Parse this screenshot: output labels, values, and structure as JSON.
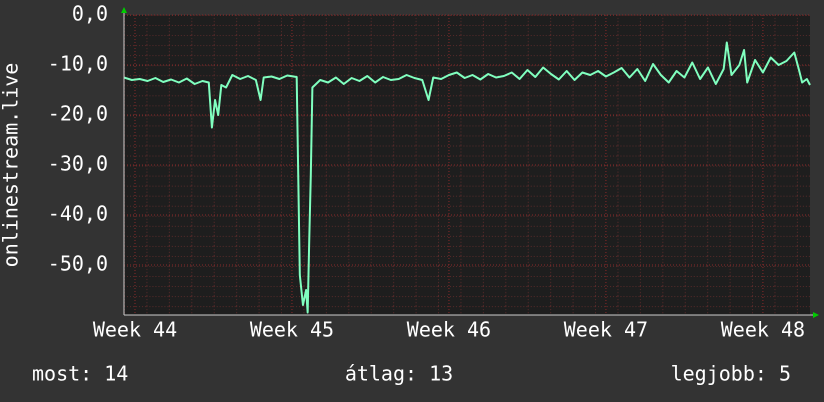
{
  "chart_data": {
    "type": "line",
    "y_label": "onlinestream.live",
    "color": "#80ffbf",
    "grid": true,
    "xlim": [
      43.93,
      48.3
    ],
    "xticks": [
      {
        "value": 44,
        "label": "Week 44"
      },
      {
        "value": 45,
        "label": "Week 45"
      },
      {
        "value": 46,
        "label": "Week 46"
      },
      {
        "value": 47,
        "label": "Week 47"
      },
      {
        "value": 48,
        "label": "Week 48"
      }
    ],
    "ylim": [
      -60,
      0
    ],
    "yticks": [
      {
        "value": 0,
        "label": "0,0"
      },
      {
        "value": -10,
        "label": "-10,0"
      },
      {
        "value": -20,
        "label": "-20,0"
      },
      {
        "value": -30,
        "label": "-30,0"
      },
      {
        "value": -40,
        "label": "-40,0"
      },
      {
        "value": -50,
        "label": "-50,0"
      }
    ],
    "x": [
      43.93,
      43.98,
      44.03,
      44.08,
      44.13,
      44.18,
      44.23,
      44.28,
      44.33,
      44.38,
      44.43,
      44.47,
      44.49,
      44.51,
      44.53,
      44.55,
      44.58,
      44.62,
      44.67,
      44.72,
      44.77,
      44.8,
      44.82,
      44.87,
      44.92,
      44.97,
      45.03,
      45.05,
      45.07,
      45.09,
      45.1,
      45.11,
      45.12,
      45.13,
      45.18,
      45.23,
      45.28,
      45.33,
      45.38,
      45.43,
      45.48,
      45.53,
      45.58,
      45.63,
      45.68,
      45.73,
      45.78,
      45.83,
      45.87,
      45.9,
      45.95,
      46.0,
      46.05,
      46.1,
      46.15,
      46.2,
      46.25,
      46.3,
      46.35,
      46.4,
      46.45,
      46.5,
      46.55,
      46.6,
      46.65,
      46.7,
      46.75,
      46.8,
      46.85,
      46.9,
      46.95,
      47.0,
      47.05,
      47.1,
      47.15,
      47.2,
      47.25,
      47.3,
      47.35,
      47.4,
      47.45,
      47.5,
      47.55,
      47.6,
      47.65,
      47.7,
      47.75,
      47.77,
      47.8,
      47.85,
      47.88,
      47.9,
      47.95,
      48.0,
      48.05,
      48.1,
      48.15,
      48.2,
      48.23,
      48.25,
      48.28,
      48.3
    ],
    "values": [
      -12.5,
      -13,
      -12.8,
      -13.2,
      -12.6,
      -13.4,
      -12.9,
      -13.5,
      -12.7,
      -13.8,
      -13.2,
      -13.5,
      -22.5,
      -17,
      -20,
      -14,
      -14.5,
      -12,
      -12.8,
      -12.2,
      -13,
      -17,
      -12.5,
      -12.3,
      -12.8,
      -12.1,
      -12.4,
      -52,
      -58,
      -55,
      -59.5,
      -45,
      -32,
      -14.5,
      -13,
      -13.5,
      -12.5,
      -13.8,
      -12.6,
      -13.2,
      -12.2,
      -13.5,
      -12.4,
      -13,
      -12.8,
      -12,
      -12.6,
      -13,
      -17,
      -12.5,
      -12.8,
      -12,
      -11.5,
      -12.6,
      -12,
      -12.9,
      -11.8,
      -12.5,
      -12.2,
      -11.5,
      -12.8,
      -11,
      -12.4,
      -10.5,
      -11.8,
      -12.9,
      -11.2,
      -13,
      -11.5,
      -12,
      -11.2,
      -12.3,
      -11.5,
      -10.6,
      -12.5,
      -10.8,
      -13.2,
      -9.8,
      -12,
      -13.5,
      -11.2,
      -12.5,
      -9.5,
      -12.8,
      -10.5,
      -13.8,
      -10.8,
      -5.5,
      -12,
      -10,
      -7,
      -13.5,
      -9,
      -11.5,
      -8.5,
      -10,
      -9.2,
      -7.5,
      -11,
      -13.5,
      -12.8,
      -14
    ],
    "footer": [
      "most: 14",
      "átlag: 13",
      "legjobb: 5"
    ]
  }
}
